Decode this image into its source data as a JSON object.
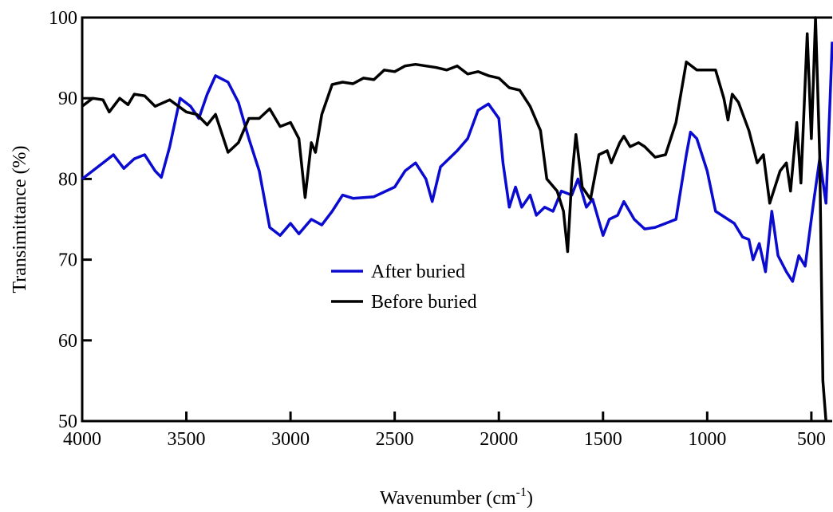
{
  "chart_data": {
    "type": "line",
    "xlabel": "Wavenumber (cm",
    "xlabel_sup": "-1",
    "xlabel_end": ")",
    "ylabel": "Transimittance (%)",
    "xlim": [
      4000,
      400
    ],
    "ylim": [
      50,
      100
    ],
    "xticks": [
      4000,
      3500,
      3000,
      2500,
      2000,
      1500,
      1000,
      500
    ],
    "yticks": [
      50,
      60,
      70,
      80,
      90,
      100
    ],
    "legend": "center",
    "series": [
      {
        "name": "After buried",
        "color": "#0a0ad0",
        "x": [
          4000,
          3900,
          3850,
          3800,
          3750,
          3700,
          3650,
          3620,
          3580,
          3530,
          3480,
          3440,
          3400,
          3360,
          3300,
          3250,
          3200,
          3150,
          3100,
          3050,
          3000,
          2960,
          2900,
          2850,
          2800,
          2750,
          2700,
          2600,
          2500,
          2450,
          2400,
          2350,
          2320,
          2280,
          2200,
          2150,
          2100,
          2050,
          2000,
          1980,
          1950,
          1920,
          1890,
          1850,
          1820,
          1780,
          1740,
          1700,
          1650,
          1620,
          1580,
          1550,
          1500,
          1470,
          1430,
          1400,
          1350,
          1300,
          1250,
          1200,
          1150,
          1100,
          1080,
          1050,
          1000,
          960,
          900,
          870,
          830,
          800,
          780,
          750,
          720,
          690,
          660,
          620,
          590,
          560,
          530,
          490,
          460,
          430,
          410,
          400
        ],
        "values": [
          80,
          82,
          83,
          81.3,
          82.5,
          83,
          81,
          80.2,
          84,
          90,
          89,
          87.5,
          90.5,
          92.8,
          92,
          89.5,
          85,
          81,
          74,
          73,
          74.5,
          73.2,
          75,
          74.3,
          76,
          78,
          77.6,
          77.8,
          79,
          81,
          82,
          80,
          77.2,
          81.5,
          83.5,
          85,
          88.5,
          89.3,
          87.5,
          82,
          76.5,
          79,
          76.5,
          78,
          75.5,
          76.5,
          76,
          78.5,
          78,
          80,
          76.5,
          77.5,
          73,
          75,
          75.5,
          77.2,
          75,
          73.8,
          74,
          74.5,
          75,
          83,
          85.8,
          85,
          81,
          76,
          75,
          74.5,
          72.8,
          72.5,
          70,
          72,
          68.5,
          76,
          70.5,
          68.5,
          67.3,
          70.5,
          69.2,
          77,
          82.5,
          77,
          90,
          97
        ]
      },
      {
        "name": "Before buried",
        "color": "#000000",
        "x": [
          4000,
          3950,
          3900,
          3870,
          3820,
          3780,
          3750,
          3700,
          3650,
          3580,
          3500,
          3450,
          3400,
          3360,
          3300,
          3250,
          3200,
          3150,
          3100,
          3050,
          3000,
          2960,
          2930,
          2900,
          2880,
          2850,
          2800,
          2750,
          2700,
          2650,
          2600,
          2550,
          2500,
          2450,
          2400,
          2300,
          2250,
          2200,
          2150,
          2100,
          2050,
          2000,
          1950,
          1900,
          1850,
          1800,
          1770,
          1720,
          1690,
          1670,
          1650,
          1630,
          1600,
          1560,
          1520,
          1480,
          1460,
          1420,
          1400,
          1370,
          1330,
          1300,
          1250,
          1200,
          1150,
          1100,
          1050,
          1000,
          960,
          920,
          900,
          880,
          850,
          800,
          760,
          730,
          700,
          650,
          620,
          600,
          570,
          550,
          520,
          500,
          480,
          460,
          445,
          430
        ],
        "values": [
          89,
          90,
          89.8,
          88.3,
          90,
          89.2,
          90.5,
          90.3,
          89,
          89.8,
          88.3,
          88,
          86.7,
          88,
          83.3,
          84.5,
          87.5,
          87.5,
          88.7,
          86.5,
          87,
          85,
          77.7,
          84.5,
          83.3,
          88,
          91.7,
          92,
          91.8,
          92.5,
          92.3,
          93.5,
          93.3,
          94,
          94.2,
          93.8,
          93.5,
          94,
          93,
          93.3,
          92.8,
          92.5,
          91.3,
          91,
          89,
          86,
          80,
          78.5,
          76,
          71,
          80,
          85.5,
          79,
          77.5,
          83,
          83.5,
          82,
          84.5,
          85.3,
          84,
          84.5,
          84,
          82.7,
          83,
          87,
          94.5,
          93.5,
          93.5,
          93.5,
          90,
          87.3,
          90.5,
          89.5,
          86,
          82,
          83,
          77,
          81,
          82,
          78.5,
          87,
          79.5,
          98,
          85,
          100,
          83,
          55,
          50
        ]
      }
    ]
  }
}
